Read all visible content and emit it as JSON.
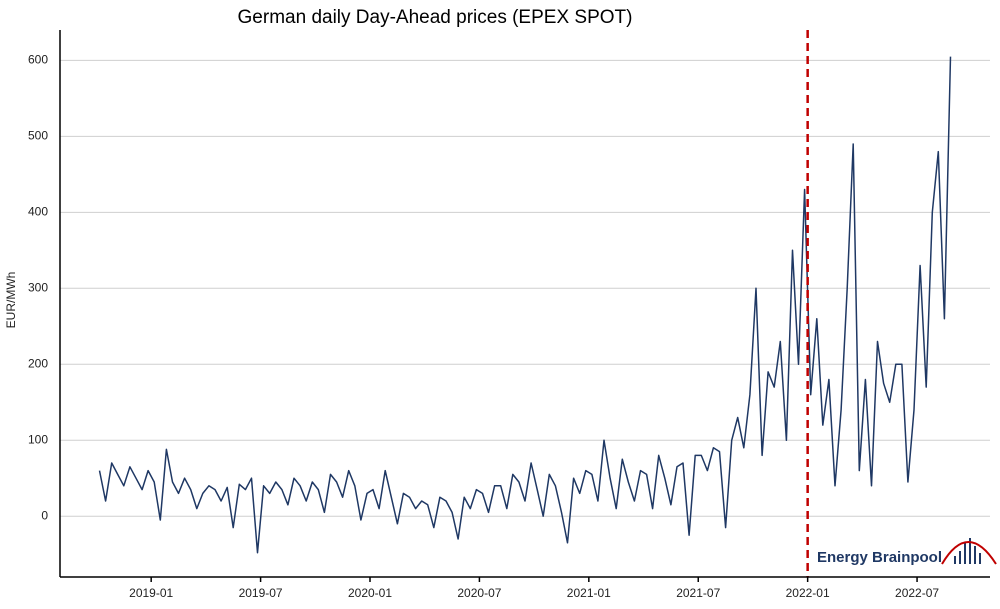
{
  "chart_data": {
    "type": "line",
    "title": "German  daily  Day-Ahead prices (EPEX SPOT)",
    "ylabel": "EUR/MWh",
    "source": "Energy Brainpool",
    "color": "#1f3864",
    "vline": {
      "x": "2022-01",
      "color": "#c00000"
    },
    "xlim": [
      "2018-08",
      "2022-11"
    ],
    "xticks": [
      "2019-01",
      "2019-07",
      "2020-01",
      "2020-07",
      "2021-01",
      "2021-07",
      "2022-01",
      "2022-07"
    ],
    "ylim": [
      -80,
      640
    ],
    "yticks": [
      0,
      100,
      200,
      300,
      400,
      500,
      600
    ],
    "grid": true,
    "x": [
      "2018-10",
      "2018-10",
      "2018-10",
      "2018-11",
      "2018-11",
      "2018-11",
      "2018-12",
      "2018-12",
      "2018-12",
      "2019-01",
      "2019-01",
      "2019-01",
      "2019-02",
      "2019-02",
      "2019-02",
      "2019-03",
      "2019-03",
      "2019-03",
      "2019-04",
      "2019-04",
      "2019-04",
      "2019-05",
      "2019-05",
      "2019-05",
      "2019-06",
      "2019-06",
      "2019-06",
      "2019-07",
      "2019-07",
      "2019-07",
      "2019-08",
      "2019-08",
      "2019-08",
      "2019-09",
      "2019-09",
      "2019-09",
      "2019-10",
      "2019-10",
      "2019-10",
      "2019-11",
      "2019-11",
      "2019-11",
      "2019-12",
      "2019-12",
      "2019-12",
      "2020-01",
      "2020-01",
      "2020-01",
      "2020-02",
      "2020-02",
      "2020-02",
      "2020-03",
      "2020-03",
      "2020-03",
      "2020-04",
      "2020-04",
      "2020-04",
      "2020-05",
      "2020-05",
      "2020-05",
      "2020-06",
      "2020-06",
      "2020-06",
      "2020-07",
      "2020-07",
      "2020-07",
      "2020-08",
      "2020-08",
      "2020-08",
      "2020-09",
      "2020-09",
      "2020-09",
      "2020-10",
      "2020-10",
      "2020-10",
      "2020-11",
      "2020-11",
      "2020-11",
      "2020-12",
      "2020-12",
      "2020-12",
      "2021-01",
      "2021-01",
      "2021-01",
      "2021-02",
      "2021-02",
      "2021-02",
      "2021-03",
      "2021-03",
      "2021-03",
      "2021-04",
      "2021-04",
      "2021-04",
      "2021-05",
      "2021-05",
      "2021-05",
      "2021-06",
      "2021-06",
      "2021-06",
      "2021-07",
      "2021-07",
      "2021-07",
      "2021-08",
      "2021-08",
      "2021-08",
      "2021-09",
      "2021-09",
      "2021-09",
      "2021-10",
      "2021-10",
      "2021-10",
      "2021-11",
      "2021-11",
      "2021-11",
      "2021-12",
      "2021-12",
      "2021-12",
      "2022-01",
      "2022-01",
      "2022-01",
      "2022-02",
      "2022-02",
      "2022-02",
      "2022-03",
      "2022-03",
      "2022-03",
      "2022-04",
      "2022-04",
      "2022-04",
      "2022-05",
      "2022-05",
      "2022-05",
      "2022-06",
      "2022-06",
      "2022-06",
      "2022-07",
      "2022-07",
      "2022-07",
      "2022-08",
      "2022-08",
      "2022-08"
    ],
    "values": [
      60,
      20,
      70,
      55,
      40,
      65,
      50,
      35,
      60,
      45,
      -5,
      88,
      45,
      30,
      50,
      35,
      10,
      30,
      40,
      35,
      20,
      38,
      -15,
      42,
      35,
      50,
      -48,
      40,
      30,
      45,
      35,
      15,
      50,
      40,
      20,
      45,
      35,
      5,
      55,
      45,
      25,
      60,
      40,
      -5,
      30,
      35,
      10,
      60,
      25,
      -10,
      30,
      25,
      10,
      20,
      15,
      -15,
      25,
      20,
      5,
      -30,
      25,
      10,
      35,
      30,
      5,
      40,
      40,
      10,
      55,
      45,
      20,
      70,
      35,
      0,
      55,
      40,
      5,
      -35,
      50,
      30,
      60,
      55,
      20,
      100,
      50,
      10,
      75,
      45,
      20,
      60,
      55,
      10,
      80,
      50,
      15,
      65,
      70,
      -25,
      80,
      80,
      60,
      90,
      85,
      -15,
      100,
      130,
      90,
      160,
      300,
      80,
      190,
      170,
      230,
      100,
      350,
      200,
      430,
      160,
      260,
      120,
      180,
      40,
      140,
      300,
      490,
      60,
      180,
      40,
      230,
      175,
      150,
      200,
      200,
      45,
      140,
      330,
      170,
      400,
      480,
      260,
      605
    ]
  }
}
